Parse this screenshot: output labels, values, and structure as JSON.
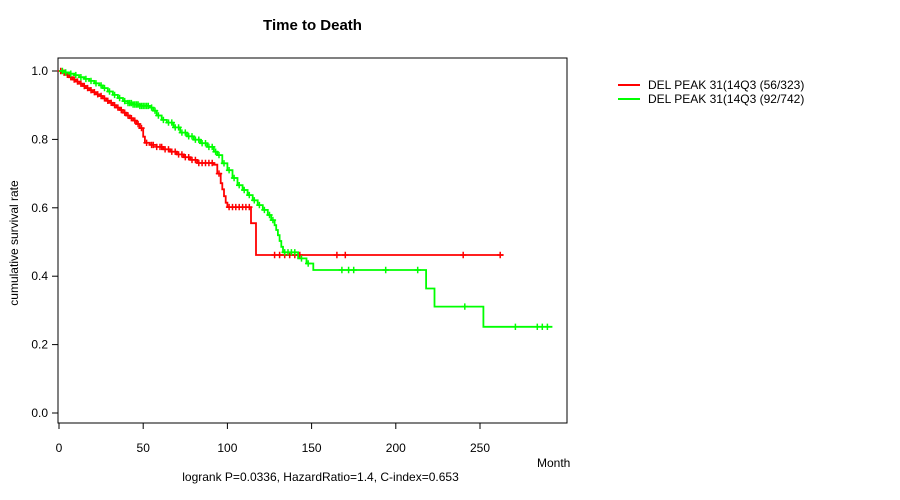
{
  "title": "Time to Death",
  "footnote": "logrank P=0.0336, HazardRatio=1.4, C-index=0.653",
  "x_axis_label": "Month",
  "y_axis_label": "cumulative survival rate",
  "legend": {
    "entries": [
      {
        "label": "DEL PEAK 31(14Q3 (56/323)",
        "color": "#ff0000"
      },
      {
        "label": "DEL PEAK 31(14Q3 (92/742)",
        "color": "#00ff00"
      }
    ]
  },
  "chart_data": {
    "type": "line",
    "subtype": "kaplan_meier_step_survival",
    "title": "Time to Death",
    "xlabel": "Month",
    "ylabel": "cumulative survival rate",
    "xlim": [
      0,
      302
    ],
    "ylim": [
      0,
      1
    ],
    "x_ticks": [
      0,
      50,
      100,
      150,
      200,
      250
    ],
    "y_ticks": [
      0.0,
      0.2,
      0.4,
      0.6,
      0.8,
      1.0
    ],
    "grid": false,
    "legend_position": "outside-top-right",
    "annotation": "logrank P=0.0336, HazardRatio=1.4, C-index=0.653",
    "axis_color": "#000000",
    "series": [
      {
        "name": "DEL PEAK 31(14Q3 (56/323)",
        "events_over_n": "56/323",
        "color": "#ff0000",
        "end_month": 264,
        "steps": [
          [
            0,
            1.0
          ],
          [
            2,
            0.995
          ],
          [
            4,
            0.989
          ],
          [
            6,
            0.982
          ],
          [
            8,
            0.975
          ],
          [
            10,
            0.969
          ],
          [
            12,
            0.963
          ],
          [
            14,
            0.956
          ],
          [
            16,
            0.95
          ],
          [
            18,
            0.944
          ],
          [
            20,
            0.938
          ],
          [
            22,
            0.932
          ],
          [
            24,
            0.927
          ],
          [
            26,
            0.92
          ],
          [
            28,
            0.913
          ],
          [
            30,
            0.907
          ],
          [
            32,
            0.9
          ],
          [
            34,
            0.893
          ],
          [
            36,
            0.886
          ],
          [
            38,
            0.878
          ],
          [
            40,
            0.87
          ],
          [
            42,
            0.862
          ],
          [
            44,
            0.855
          ],
          [
            46,
            0.845
          ],
          [
            48,
            0.833
          ],
          [
            50,
            0.808
          ],
          [
            51,
            0.79
          ],
          [
            54,
            0.784
          ],
          [
            58,
            0.778
          ],
          [
            62,
            0.771
          ],
          [
            66,
            0.764
          ],
          [
            70,
            0.756
          ],
          [
            74,
            0.748
          ],
          [
            78,
            0.74
          ],
          [
            82,
            0.731
          ],
          [
            92,
            0.726
          ],
          [
            94,
            0.7
          ],
          [
            96,
            0.672
          ],
          [
            97,
            0.654
          ],
          [
            98,
            0.634
          ],
          [
            99,
            0.615
          ],
          [
            100,
            0.602
          ],
          [
            114,
            0.555
          ],
          [
            117,
            0.462
          ]
        ],
        "censor_months": [
          1,
          3,
          5,
          7,
          9,
          11,
          13,
          15,
          17,
          19,
          21,
          23,
          25,
          27,
          29,
          31,
          33,
          35,
          37,
          39,
          41,
          43,
          45,
          47,
          49,
          52,
          55,
          56,
          58,
          60,
          61,
          63,
          65,
          67,
          69,
          71,
          73,
          75,
          77,
          79,
          81,
          83,
          85,
          87,
          89,
          91,
          95,
          101,
          103,
          105,
          107,
          109,
          111,
          113,
          128,
          131,
          134,
          137,
          140,
          143,
          165,
          170,
          240,
          262
        ]
      },
      {
        "name": "DEL PEAK 31(14Q3 (92/742)",
        "events_over_n": "92/742",
        "color": "#00ff00",
        "end_month": 293,
        "steps": [
          [
            0,
            1.0
          ],
          [
            3,
            0.996
          ],
          [
            6,
            0.992
          ],
          [
            9,
            0.988
          ],
          [
            12,
            0.982
          ],
          [
            15,
            0.977
          ],
          [
            18,
            0.971
          ],
          [
            21,
            0.964
          ],
          [
            24,
            0.958
          ],
          [
            26,
            0.95
          ],
          [
            29,
            0.94
          ],
          [
            32,
            0.93
          ],
          [
            35,
            0.921
          ],
          [
            38,
            0.912
          ],
          [
            41,
            0.906
          ],
          [
            44,
            0.902
          ],
          [
            48,
            0.898
          ],
          [
            54,
            0.893
          ],
          [
            56,
            0.884
          ],
          [
            58,
            0.87
          ],
          [
            61,
            0.857
          ],
          [
            64,
            0.849
          ],
          [
            68,
            0.835
          ],
          [
            72,
            0.82
          ],
          [
            76,
            0.809
          ],
          [
            80,
            0.799
          ],
          [
            84,
            0.789
          ],
          [
            88,
            0.778
          ],
          [
            92,
            0.764
          ],
          [
            94,
            0.754
          ],
          [
            97,
            0.73
          ],
          [
            100,
            0.71
          ],
          [
            103,
            0.687
          ],
          [
            106,
            0.666
          ],
          [
            109,
            0.652
          ],
          [
            112,
            0.637
          ],
          [
            115,
            0.622
          ],
          [
            118,
            0.608
          ],
          [
            121,
            0.594
          ],
          [
            124,
            0.579
          ],
          [
            126,
            0.564
          ],
          [
            128,
            0.549
          ],
          [
            129,
            0.535
          ],
          [
            130,
            0.52
          ],
          [
            131,
            0.503
          ],
          [
            132,
            0.486
          ],
          [
            133,
            0.47
          ],
          [
            142,
            0.452
          ],
          [
            147,
            0.437
          ],
          [
            151,
            0.418
          ],
          [
            218,
            0.364
          ],
          [
            223,
            0.311
          ],
          [
            252,
            0.252
          ]
        ],
        "censor_months": [
          2,
          4,
          7,
          10,
          13,
          16,
          19,
          22,
          25,
          27,
          30,
          33,
          36,
          39,
          41,
          42,
          43,
          44,
          45,
          46,
          47,
          48,
          49,
          50,
          51,
          52,
          53,
          55,
          57,
          59,
          62,
          65,
          67,
          69,
          71,
          73,
          75,
          77,
          79,
          81,
          83,
          85,
          87,
          89,
          91,
          93,
          95,
          98,
          101,
          104,
          107,
          110,
          113,
          116,
          119,
          122,
          125,
          127,
          134,
          136,
          138,
          140,
          144,
          148,
          168,
          172,
          175,
          194,
          213,
          241,
          271,
          284,
          287,
          290
        ]
      }
    ]
  }
}
